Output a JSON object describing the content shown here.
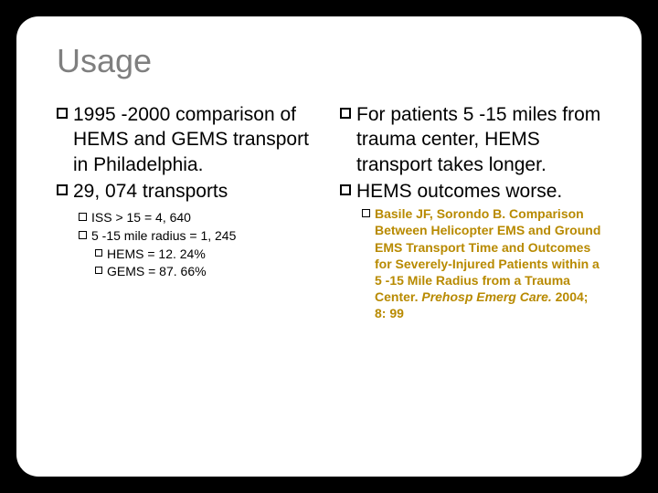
{
  "title": "Usage",
  "left": {
    "b1": "1995 -2000 comparison of HEMS and GEMS transport in Philadelphia.",
    "b2": "29, 074 transports",
    "s1": "ISS > 15 = 4, 640",
    "s2": "5 -15 mile radius = 1, 245",
    "t1": "HEMS = 12. 24%",
    "t2": "GEMS = 87. 66%"
  },
  "right": {
    "b1": "For patients 5 -15 miles from trauma center, HEMS transport takes longer.",
    "b2": "HEMS outcomes worse.",
    "cite_plain": "Basile JF, Sorondo B. Comparison Between Helicopter EMS and Ground EMS Transport Time and Outcomes for Severely-Injured Patients within a 5 -15 Mile Radius from a Trauma Center. ",
    "cite_ital": "Prehosp Emerg Care. ",
    "cite_tail": "2004; 8: 99"
  },
  "colors": {
    "bg": "#000000",
    "slide_bg": "#ffffff",
    "title": "#7f7f7f",
    "citation": "#b88a00"
  }
}
